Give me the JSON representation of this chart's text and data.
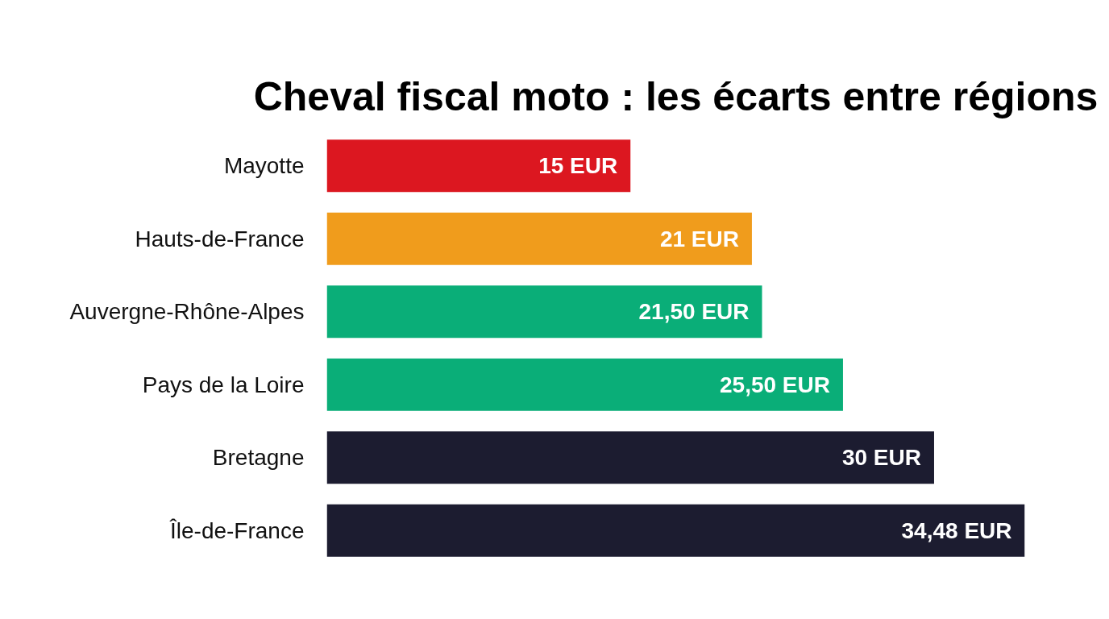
{
  "chart_data": {
    "type": "bar",
    "orientation": "horizontal",
    "title": "Cheval fiscal moto : les écarts entre régions",
    "categories": [
      "Mayotte",
      "Hauts-de-France",
      "Auvergne-Rhône-Alpes",
      "Pays de la Loire",
      "Bretagne",
      "Île-de-France"
    ],
    "values": [
      15,
      21,
      21.5,
      25.5,
      30,
      34.48
    ],
    "colors": [
      "#dc1720",
      "#f09c1c",
      "#0aae78",
      "#0aae78",
      "#1c1c30",
      "#1c1c30"
    ],
    "value_labels": [
      "15 EUR",
      "21 EUR",
      "21,50 EUR",
      "25,50 EUR",
      "30 EUR",
      "34,48 EUR"
    ]
  }
}
